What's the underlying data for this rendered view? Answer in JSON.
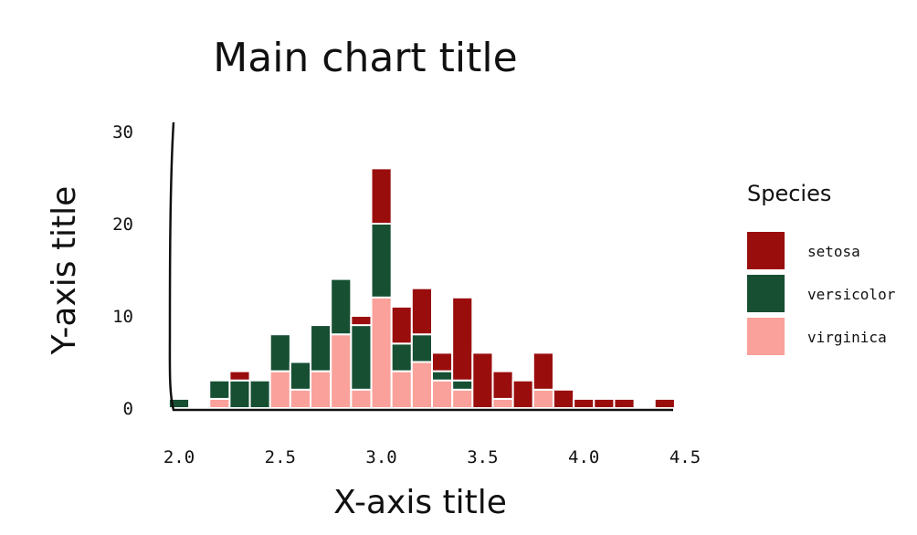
{
  "chart_data": {
    "type": "bar",
    "stacked": true,
    "title": "Main chart title",
    "xlabel": "X-axis title",
    "ylabel": "Y-axis title",
    "xlim": [
      2.0,
      4.5
    ],
    "ylim": [
      0,
      30
    ],
    "xticks": [
      "2.0",
      "2.5",
      "3.0",
      "3.5",
      "4.0",
      "4.5"
    ],
    "yticks": [
      "0",
      "10",
      "20",
      "30"
    ],
    "grid": false,
    "legend": {
      "title": "Species",
      "placement": "right"
    },
    "bin_width": 0.1,
    "x": [
      2.0,
      2.2,
      2.3,
      2.4,
      2.5,
      2.6,
      2.7,
      2.8,
      2.9,
      3.0,
      3.1,
      3.2,
      3.3,
      3.4,
      3.5,
      3.6,
      3.7,
      3.8,
      3.9,
      4.0,
      4.1,
      4.2,
      4.4
    ],
    "series": [
      {
        "name": "virginica",
        "color": "#F9A19A",
        "values": [
          0,
          1,
          0,
          0,
          4,
          2,
          4,
          8,
          2,
          12,
          4,
          5,
          3,
          2,
          0,
          1,
          0,
          2,
          0,
          0,
          0,
          0,
          0
        ]
      },
      {
        "name": "versicolor",
        "color": "#174F33",
        "values": [
          1,
          2,
          3,
          3,
          4,
          3,
          5,
          6,
          7,
          8,
          3,
          3,
          1,
          1,
          0,
          0,
          0,
          0,
          0,
          0,
          0,
          0,
          0
        ]
      },
      {
        "name": "setosa",
        "color": "#9A0D0D",
        "values": [
          0,
          0,
          1,
          0,
          0,
          0,
          0,
          0,
          1,
          6,
          4,
          5,
          2,
          9,
          6,
          3,
          3,
          4,
          2,
          1,
          1,
          1,
          1
        ]
      }
    ],
    "legend_order": [
      "setosa",
      "versicolor",
      "virginica"
    ]
  }
}
